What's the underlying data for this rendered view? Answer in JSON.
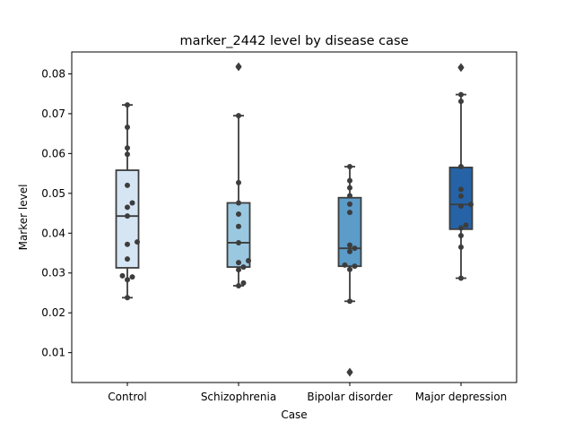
{
  "chart_data": {
    "type": "box",
    "title": "marker_2442 level by disease case",
    "xlabel": "Case",
    "ylabel": "Marker level",
    "ylim": [
      0.0025,
      0.0855
    ],
    "yticks": [
      0.01,
      0.02,
      0.03,
      0.04,
      0.05,
      0.06,
      0.07,
      0.08
    ],
    "ytick_labels": [
      "0.01",
      "0.02",
      "0.03",
      "0.04",
      "0.05",
      "0.06",
      "0.07",
      "0.08"
    ],
    "categories": [
      "Control",
      "Schizophrenia",
      "Bipolar disorder",
      "Major depression"
    ],
    "colors": [
      "#d6e5f4",
      "#9ac8e0",
      "#5b9cc9",
      "#2563a6"
    ],
    "box_edge_color": "#3d3d3d",
    "point_color": "#3d3d3d",
    "boxes": [
      {
        "category": "Control",
        "q1": 0.0313,
        "median": 0.0443,
        "q3": 0.0558,
        "whisker_low": 0.0238,
        "whisker_high": 0.0722,
        "outliers": [],
        "points": [
          0.0722,
          0.0666,
          0.0614,
          0.0598,
          0.052,
          0.0476,
          0.0465,
          0.0443,
          0.0378,
          0.0372,
          0.0335,
          0.0293,
          0.029,
          0.0283,
          0.0238
        ]
      },
      {
        "category": "Schizophrenia",
        "q1": 0.0315,
        "median": 0.0376,
        "q3": 0.0476,
        "whisker_low": 0.0268,
        "whisker_high": 0.0695,
        "outliers": [
          0.0818
        ],
        "points": [
          0.0818,
          0.0695,
          0.0527,
          0.0476,
          0.0448,
          0.0417,
          0.0376,
          0.0331,
          0.0326,
          0.0315,
          0.0308,
          0.0275,
          0.0268
        ]
      },
      {
        "category": "Bipolar disorder",
        "q1": 0.0317,
        "median": 0.0362,
        "q3": 0.0489,
        "whisker_low": 0.0229,
        "whisker_high": 0.0567,
        "outliers": [
          0.0051
        ],
        "points": [
          0.0567,
          0.0532,
          0.0514,
          0.0494,
          0.0473,
          0.0452,
          0.037,
          0.0362,
          0.0354,
          0.032,
          0.0317,
          0.0309,
          0.0229,
          0.0051
        ]
      },
      {
        "category": "Major depression",
        "q1": 0.041,
        "median": 0.0472,
        "q3": 0.0565,
        "whisker_low": 0.0287,
        "whisker_high": 0.0748,
        "outliers": [
          0.0816
        ],
        "points": [
          0.0816,
          0.0748,
          0.0731,
          0.0567,
          0.051,
          0.0493,
          0.0472,
          0.0468,
          0.042,
          0.0413,
          0.0394,
          0.0365,
          0.0287
        ]
      }
    ],
    "grid": false,
    "legend": "none"
  }
}
